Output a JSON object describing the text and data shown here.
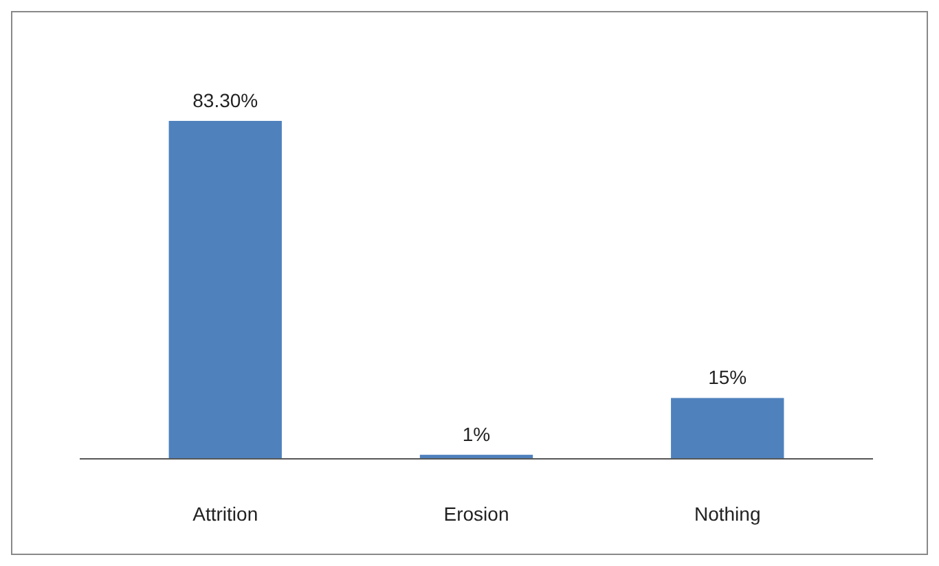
{
  "chart_data": {
    "type": "bar",
    "categories": [
      "Attrition",
      "Erosion",
      "Nothing"
    ],
    "values": [
      83.3,
      1,
      15
    ],
    "value_labels": [
      "83.30%",
      "1%",
      "15%"
    ],
    "color": "#4f81bd"
  }
}
